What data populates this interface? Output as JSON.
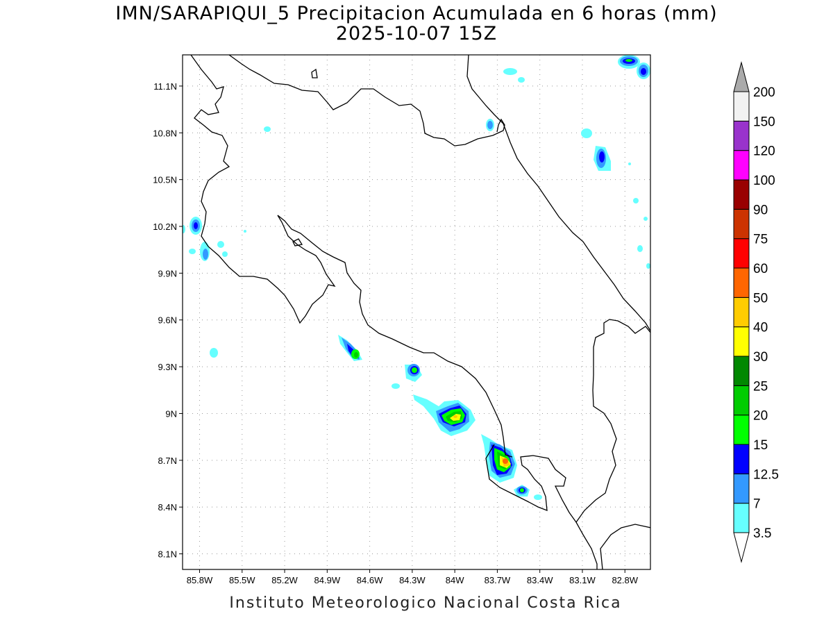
{
  "title": {
    "line1": "IMN/SARAPIQUI_5 Precipitacion Acumulada en 6 horas (mm)",
    "line2": "2025-10-07 15Z"
  },
  "footer": "Instituto Meteorologico Nacional Costa Rica",
  "map": {
    "lon_range": [
      -85.92,
      -82.62
    ],
    "lat_range": [
      8.0,
      11.3
    ],
    "lat_ticks": [
      "11.1N",
      "10.8N",
      "10.5N",
      "10.2N",
      "9.9N",
      "9.6N",
      "9.3N",
      "9N",
      "8.7N",
      "8.4N",
      "8.1N"
    ],
    "lat_tick_values": [
      11.1,
      10.8,
      10.5,
      10.2,
      9.9,
      9.6,
      9.3,
      9.0,
      8.7,
      8.4,
      8.1
    ],
    "lon_ticks": [
      "85.8W",
      "85.5W",
      "85.2W",
      "84.9W",
      "84.6W",
      "84.3W",
      "84W",
      "83.7W",
      "83.4W",
      "83.1W",
      "82.8W"
    ],
    "lon_tick_values": [
      -85.8,
      -85.5,
      -85.2,
      -84.9,
      -84.6,
      -84.3,
      -84.0,
      -83.7,
      -83.4,
      -83.1,
      -82.8
    ],
    "grid": "dotted"
  },
  "colorbar": {
    "levels": [
      "3.5",
      "7",
      "12.5",
      "15",
      "20",
      "25",
      "30",
      "40",
      "50",
      "60",
      "75",
      "90",
      "100",
      "120",
      "150",
      "200"
    ],
    "colors": [
      "#66ffff",
      "#3399ff",
      "#0000ff",
      "#00ff00",
      "#00cc00",
      "#008800",
      "#ffff00",
      "#ffcc00",
      "#ff6600",
      "#ff0000",
      "#cc3300",
      "#990000",
      "#ff00ff",
      "#9933cc",
      "#f2f2f2",
      "#aaaaaa"
    ]
  },
  "precip_cells": [
    {
      "lon": -84.68,
      "lat": 9.4,
      "max": "20"
    },
    {
      "lon": -84.28,
      "lat": 9.28,
      "max": "15"
    },
    {
      "lon": -83.97,
      "lat": 8.98,
      "max": "40"
    },
    {
      "lon": -83.62,
      "lat": 8.7,
      "max": "60"
    },
    {
      "lon": -83.46,
      "lat": 8.52,
      "max": "20"
    },
    {
      "lon": -82.85,
      "lat": 10.65,
      "max": "12.5"
    },
    {
      "lon": -82.72,
      "lat": 11.23,
      "max": "20"
    },
    {
      "lon": -82.64,
      "lat": 11.19,
      "max": "12.5"
    },
    {
      "lon": -85.86,
      "lat": 10.2,
      "max": "12.5"
    }
  ]
}
